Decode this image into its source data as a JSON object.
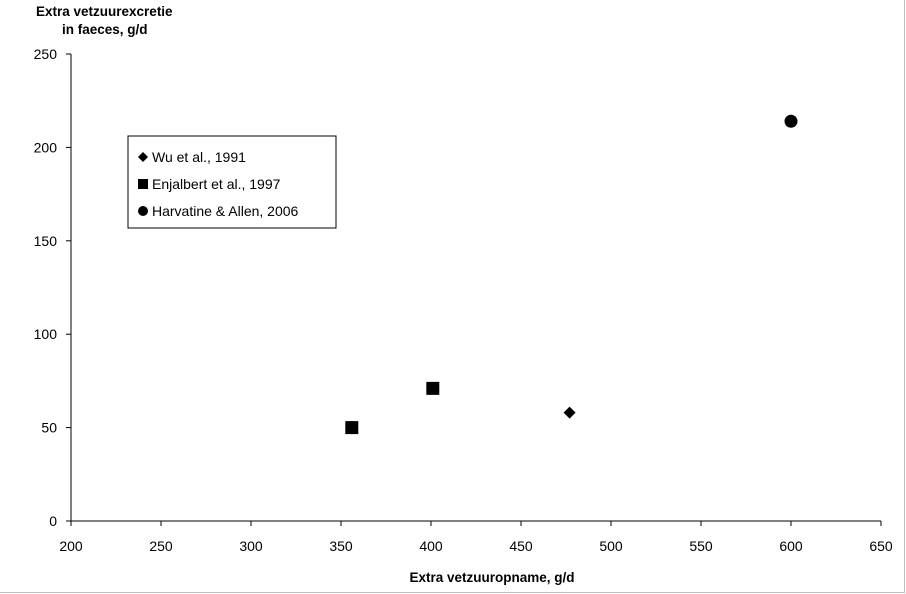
{
  "chart_data": {
    "type": "scatter",
    "title": "",
    "ylabel_line1": "Extra vetzuurexcretie",
    "ylabel_line2": "in faeces, g/d",
    "xlabel": "Extra vetzuuropname, g/d",
    "xlim": [
      200,
      650
    ],
    "ylim": [
      0,
      250
    ],
    "x_ticks": [
      200,
      250,
      300,
      350,
      400,
      450,
      500,
      550,
      600,
      650
    ],
    "y_ticks": [
      0,
      50,
      100,
      150,
      200,
      250
    ],
    "grid": false,
    "legend_position": "top-left",
    "series": [
      {
        "name": "Wu et al., 1991",
        "marker": "diamond",
        "color": "#000000",
        "points": [
          {
            "x": 477,
            "y": 58
          }
        ]
      },
      {
        "name": "Enjalbert et al., 1997",
        "marker": "square",
        "color": "#000000",
        "points": [
          {
            "x": 356,
            "y": 50
          },
          {
            "x": 401,
            "y": 71
          }
        ]
      },
      {
        "name": "Harvatine & Allen, 2006",
        "marker": "circle",
        "color": "#000000",
        "points": [
          {
            "x": 600,
            "y": 214
          }
        ]
      }
    ]
  }
}
